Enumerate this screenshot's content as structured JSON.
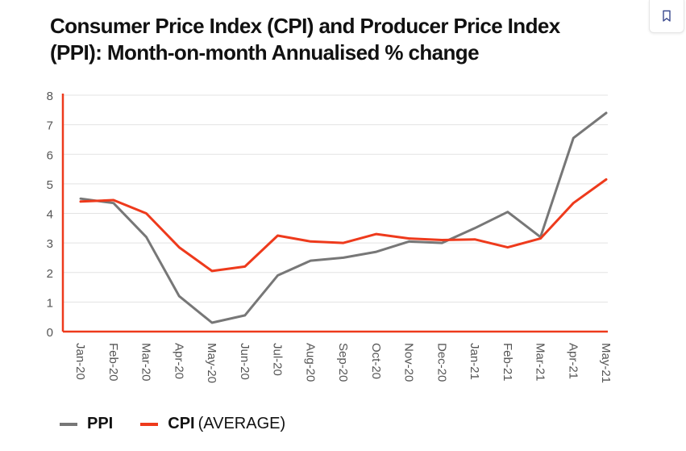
{
  "title": "Consumer Price Index (CPI) and Producer Price Index (PPI): Month-on-month Annualised % change",
  "bookmark_icon": "bookmark-icon",
  "colors": {
    "ppi": "#777777",
    "cpi": "#ee3a1c",
    "grid": "#e3e3e3",
    "axis": "#ee3a1c",
    "tick": "#555555"
  },
  "legend": [
    {
      "name": "PPI",
      "note": ""
    },
    {
      "name": "CPI",
      "note": "(AVERAGE)"
    }
  ],
  "chart_data": {
    "type": "line",
    "title": "Consumer Price Index (CPI) and Producer Price Index (PPI): Month-on-month Annualised % change",
    "categories": [
      "Jan-20",
      "Feb-20",
      "Mar-20",
      "Apr-20",
      "May-20",
      "Jun-20",
      "Jul-20",
      "Aug-20",
      "Sep-20",
      "Oct-20",
      "Nov-20",
      "Dec-20",
      "Jan-21",
      "Feb-21",
      "Mar-21",
      "Apr-21",
      "May-21"
    ],
    "series": [
      {
        "name": "PPI",
        "color": "#777777",
        "values": [
          4.5,
          4.35,
          3.2,
          1.2,
          0.3,
          0.55,
          1.9,
          2.4,
          2.5,
          2.7,
          3.05,
          3.0,
          3.5,
          4.05,
          3.2,
          6.55,
          7.4
        ]
      },
      {
        "name": "CPI",
        "color": "#ee3a1c",
        "values": [
          4.4,
          4.45,
          4.0,
          2.85,
          2.05,
          2.2,
          3.25,
          3.05,
          3.0,
          3.3,
          3.15,
          3.1,
          3.12,
          2.85,
          3.15,
          4.35,
          5.15
        ]
      }
    ],
    "y_ticks": [
      0,
      1,
      2,
      3,
      4,
      5,
      6,
      7,
      8
    ],
    "ylim": [
      0,
      8
    ],
    "xlabel": "",
    "ylabel": "",
    "grid": true,
    "legend_position": "bottom-left"
  }
}
